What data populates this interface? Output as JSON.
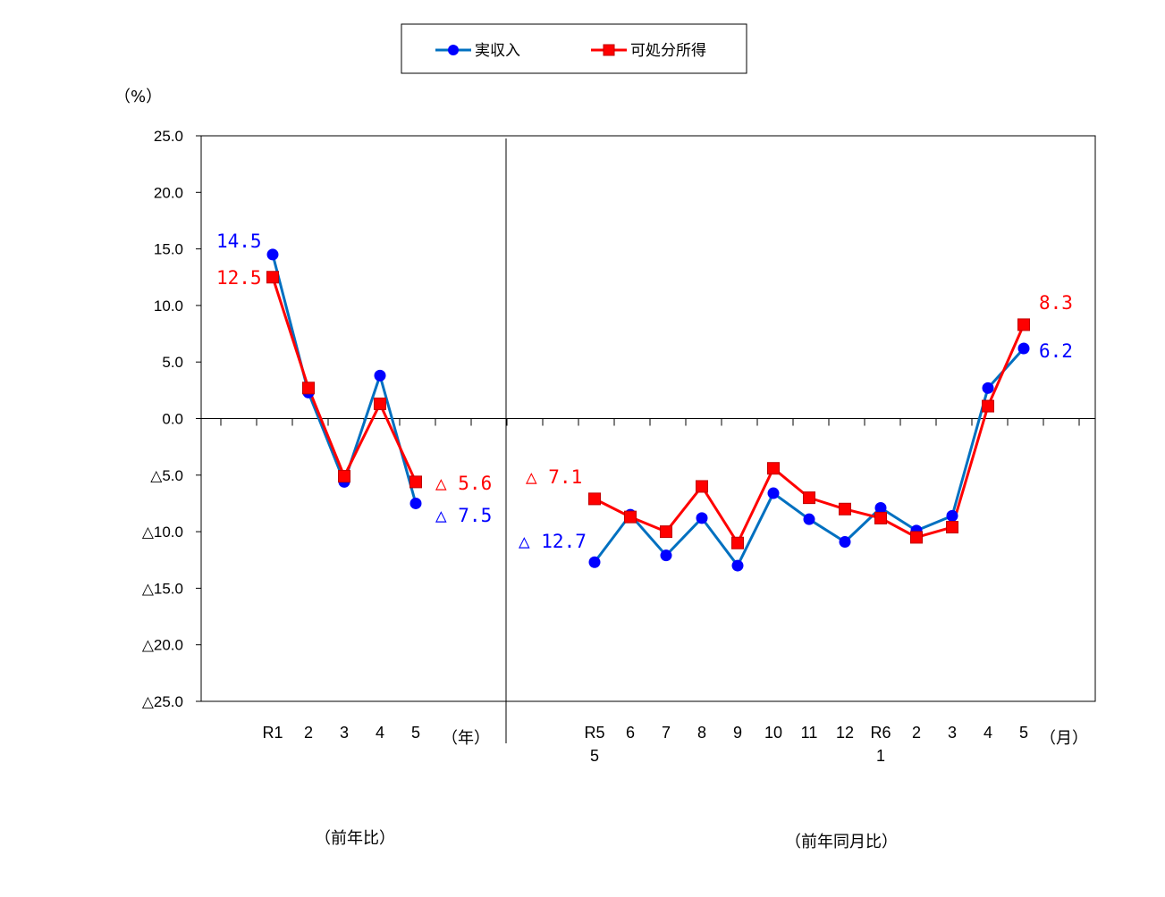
{
  "legend": {
    "series1": "実収入",
    "series2": "可処分所得"
  },
  "unit_label": "（%）",
  "year_unit": "（年）",
  "month_unit": "（月）",
  "section_labels": {
    "annual": "（前年比）",
    "monthly": "（前年同月比）"
  },
  "colors": {
    "series1": "#0000ff",
    "series1_line": "#0070c0",
    "series2": "#ff0000",
    "axis": "#000000"
  },
  "chart_data": {
    "type": "line",
    "ylim": [
      -25,
      25
    ],
    "yticks": [
      25,
      20,
      15,
      10,
      5,
      0,
      -5,
      -10,
      -15,
      -20,
      -25
    ],
    "ytick_labels": [
      "25.0",
      "20.0",
      "15.0",
      "10.0",
      "5.0",
      "0.0",
      "△5.0",
      "△10.0",
      "△15.0",
      "△20.0",
      "△25.0"
    ],
    "grid": false,
    "legend_position": "top-center",
    "annual": {
      "categories": [
        [
          "R1"
        ],
        [
          "2"
        ],
        [
          "3"
        ],
        [
          "4"
        ],
        [
          "5"
        ]
      ],
      "series": [
        {
          "name": "実収入",
          "values": [
            14.5,
            2.3,
            -5.6,
            3.8,
            -7.5
          ]
        },
        {
          "name": "可処分所得",
          "values": [
            12.5,
            2.7,
            -5.1,
            1.3,
            -5.6
          ]
        }
      ]
    },
    "monthly": {
      "categories": [
        [
          "R5",
          "5"
        ],
        [
          "6"
        ],
        [
          "7"
        ],
        [
          "8"
        ],
        [
          "9"
        ],
        [
          "10"
        ],
        [
          "11"
        ],
        [
          "12"
        ],
        [
          "R6",
          "1"
        ],
        [
          "2"
        ],
        [
          "3"
        ],
        [
          "4"
        ],
        [
          "5"
        ]
      ],
      "series": [
        {
          "name": "実収入",
          "values": [
            -12.7,
            -8.5,
            -12.1,
            -8.8,
            -13.0,
            -6.6,
            -8.9,
            -10.9,
            -7.9,
            -9.9,
            -8.6,
            2.7,
            6.2
          ]
        },
        {
          "name": "可処分所得",
          "values": [
            -7.1,
            -8.7,
            -10.0,
            -6.0,
            -11.0,
            -4.4,
            -7.0,
            -8.0,
            -8.8,
            -10.5,
            -9.6,
            1.1,
            8.3
          ]
        }
      ]
    },
    "annotations": [
      {
        "text": "14.5",
        "series": "実収入"
      },
      {
        "text": "12.5",
        "series": "可処分所得"
      },
      {
        "text": "△ 5.6",
        "series": "可処分所得"
      },
      {
        "text": "△ 7.5",
        "series": "実収入"
      },
      {
        "text": "△ 7.1",
        "series": "可処分所得"
      },
      {
        "text": "△ 12.7",
        "series": "実収入"
      },
      {
        "text": "8.3",
        "series": "可処分所得"
      },
      {
        "text": "6.2",
        "series": "実収入"
      }
    ]
  }
}
